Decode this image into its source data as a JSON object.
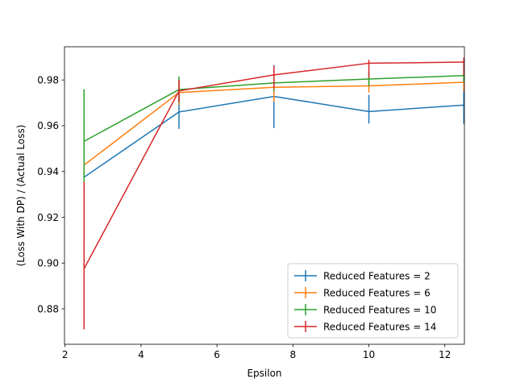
{
  "chart_data": {
    "type": "line",
    "title": "",
    "xlabel": "Epsilon",
    "ylabel": "(Loss With DP) / (Actual Loss)",
    "xlim": [
      1.985,
      12.515
    ],
    "ylim": [
      0.8645,
      0.9945
    ],
    "xticks": [
      2,
      4,
      6,
      8,
      10,
      12
    ],
    "yticks": [
      0.88,
      0.9,
      0.92,
      0.94,
      0.96,
      0.98
    ],
    "ytick_labels": [
      "0.88",
      "0.90",
      "0.92",
      "0.94",
      "0.96",
      "0.98"
    ],
    "grid": false,
    "legend_position": "lower-right",
    "x": [
      2.5,
      5,
      7.5,
      10,
      12.5
    ],
    "series": [
      {
        "name": "Reduced Features = 2",
        "color": "#1f77b4",
        "values": [
          0.9375,
          0.966,
          0.9728,
          0.9662,
          0.969
        ],
        "err_low": [
          0.9108,
          0.9586,
          0.959,
          0.961,
          0.9608
        ],
        "err_high": [
          0.964,
          0.9732,
          0.9865,
          0.9735,
          0.9762
        ]
      },
      {
        "name": "Reduced Features = 6",
        "color": "#ff7f0e",
        "values": [
          0.9428,
          0.9745,
          0.9768,
          0.9774,
          0.979
        ],
        "err_low": [
          0.9125,
          0.969,
          0.9705,
          0.9745,
          0.975
        ],
        "err_high": [
          0.973,
          0.98,
          0.983,
          0.9803,
          0.983
        ]
      },
      {
        "name": "Reduced Features = 10",
        "color": "#2ca02c",
        "values": [
          0.9532,
          0.9758,
          0.9787,
          0.9804,
          0.9819
        ],
        "err_low": [
          0.9305,
          0.97,
          0.975,
          0.9772,
          0.9792
        ],
        "err_high": [
          0.976,
          0.9815,
          0.9825,
          0.9836,
          0.9846
        ]
      },
      {
        "name": "Reduced Features = 14",
        "color": "#d62728",
        "values": [
          0.8975,
          0.9752,
          0.9822,
          0.9873,
          0.9878
        ],
        "err_low": [
          0.871,
          0.9705,
          0.976,
          0.981,
          0.982
        ],
        "err_high": [
          0.9355,
          0.98,
          0.9862,
          0.9888,
          0.9898
        ]
      }
    ]
  }
}
